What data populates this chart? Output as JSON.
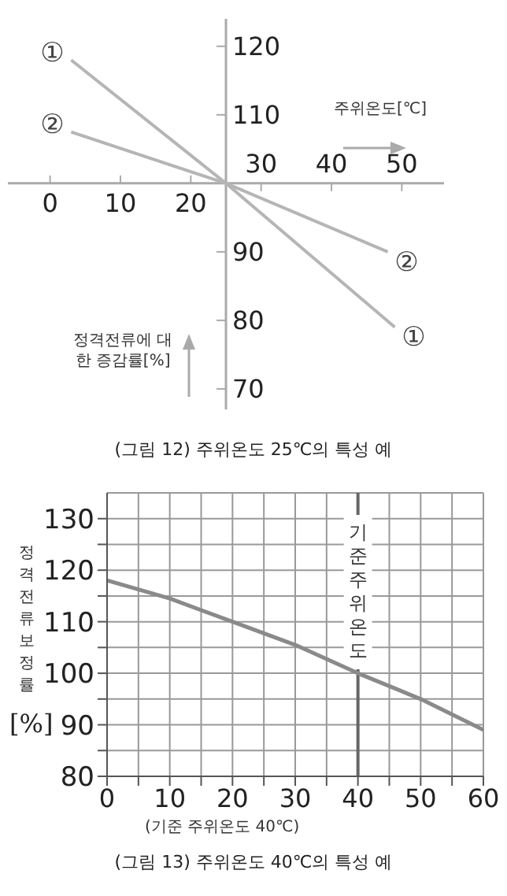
{
  "chart_data": [
    {
      "type": "line",
      "title": "(그림 12) 주위온도 25℃의 특성 예",
      "xlabel": "주위온도[℃]",
      "ylabel": "정격전류에 대한 증감률[%]",
      "xlim": [
        -6,
        56
      ],
      "ylim": [
        67,
        124
      ],
      "xticks": [
        0,
        10,
        20
      ],
      "x2lim": [
        -6,
        56
      ],
      "x2ticks": [
        30,
        40,
        50
      ],
      "yticks": [
        70,
        80,
        90,
        110,
        120
      ],
      "series": [
        {
          "name": "①",
          "color": "#b5b5b5",
          "x": [
            3,
            25,
            49
          ],
          "values": [
            118,
            100,
            79
          ]
        },
        {
          "name": "②",
          "color": "#b5b5b5",
          "x": [
            3,
            25,
            48
          ],
          "values": [
            107.5,
            100,
            90
          ]
        }
      ]
    },
    {
      "type": "line",
      "title": "(그림 13) 주위온도 40℃의 특성 예",
      "ylabel": "정격전류보정률",
      "xlim": [
        0,
        60
      ],
      "ylim": [
        80,
        135
      ],
      "xticks": [
        0,
        {
          "value": 5,
          "label": null
        },
        10,
        {
          "value": 15,
          "label": null
        },
        20,
        {
          "value": 25,
          "label": null
        },
        30,
        {
          "value": 35,
          "label": null
        },
        40,
        {
          "value": 45,
          "label": null
        },
        50,
        {
          "value": 55,
          "label": null
        },
        60
      ],
      "yticks": [
        80,
        {
          "value": 85,
          "label": null
        },
        90,
        {
          "value": 95,
          "label": null
        },
        100,
        {
          "value": 105,
          "label": null
        },
        110,
        {
          "value": 115,
          "label": null
        },
        120,
        {
          "value": 125,
          "label": null
        },
        130
      ],
      "grid": true,
      "x": [
        0,
        10,
        20,
        30,
        40,
        50,
        60
      ],
      "series": [
        {
          "color": "#8a8a8a",
          "values": [
            118,
            114.5,
            110,
            105.5,
            100,
            95,
            89
          ]
        }
      ],
      "ref_lines": [
        {
          "axis": "x",
          "value": 40,
          "label": "기준주위온도",
          "color": "#666666"
        }
      ],
      "annotations": [
        "[%]",
        "(기준 주위온도 40℃)"
      ]
    }
  ]
}
